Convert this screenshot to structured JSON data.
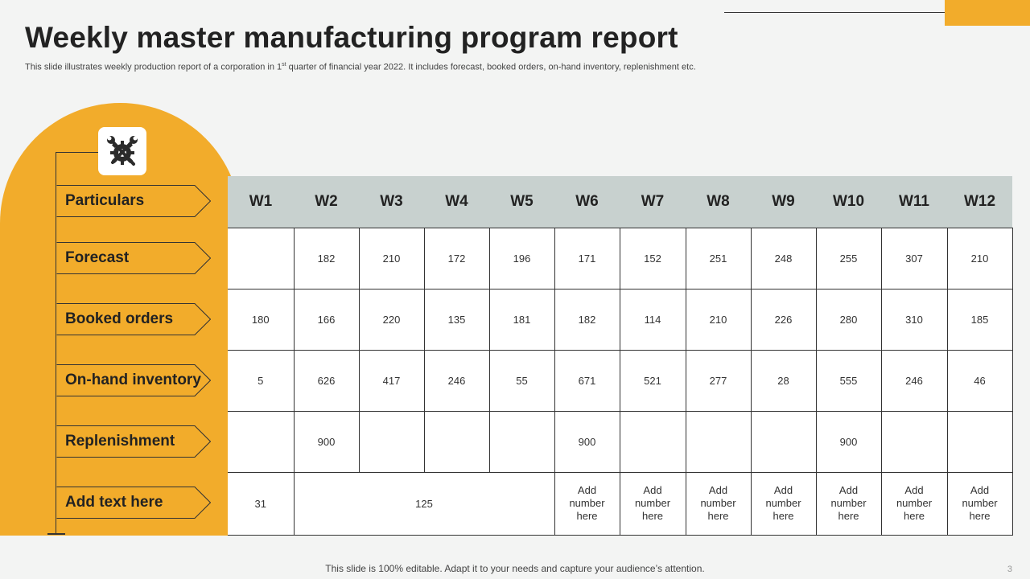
{
  "slide": {
    "title": "Weekly master manufacturing program report",
    "subtitle_pre": "This slide illustrates weekly production report of a corporation in 1",
    "subtitle_sup": "st",
    "subtitle_post": " quarter of financial year 2022. It includes forecast, booked orders, on-hand inventory, replenishment etc.",
    "footer": "This slide is 100% editable. Adapt it to your needs and capture your audience’s attention.",
    "page_number": "3",
    "accent_color": "#f2ac2b",
    "header_color": "#c8d1cf"
  },
  "icon": {
    "name": "tools-gear-icon"
  },
  "labels": [
    "Particulars",
    "Forecast",
    "Booked orders",
    "On-hand inventory",
    "Replenishment",
    "Add text here"
  ],
  "table": {
    "weeks": [
      "W1",
      "W2",
      "W3",
      "W4",
      "W5",
      "W6",
      "W7",
      "W8",
      "W9",
      "W10",
      "W11",
      "W12"
    ],
    "forecast": [
      "",
      "182",
      "210",
      "172",
      "196",
      "171",
      "152",
      "251",
      "248",
      "255",
      "307",
      "210"
    ],
    "booked_orders": [
      "180",
      "166",
      "220",
      "135",
      "181",
      "182",
      "114",
      "210",
      "226",
      "280",
      "310",
      "185"
    ],
    "on_hand_inventory": [
      "5",
      "626",
      "417",
      "246",
      "55",
      "671",
      "521",
      "277",
      "28",
      "555",
      "246",
      "46"
    ],
    "replenishment": [
      "",
      "900",
      "",
      "",
      "",
      "900",
      "",
      "",
      "",
      "900",
      "",
      ""
    ],
    "add_text": {
      "w1": "31",
      "w2_w5": "125",
      "placeholder": [
        "Add",
        "number",
        "here"
      ]
    }
  }
}
